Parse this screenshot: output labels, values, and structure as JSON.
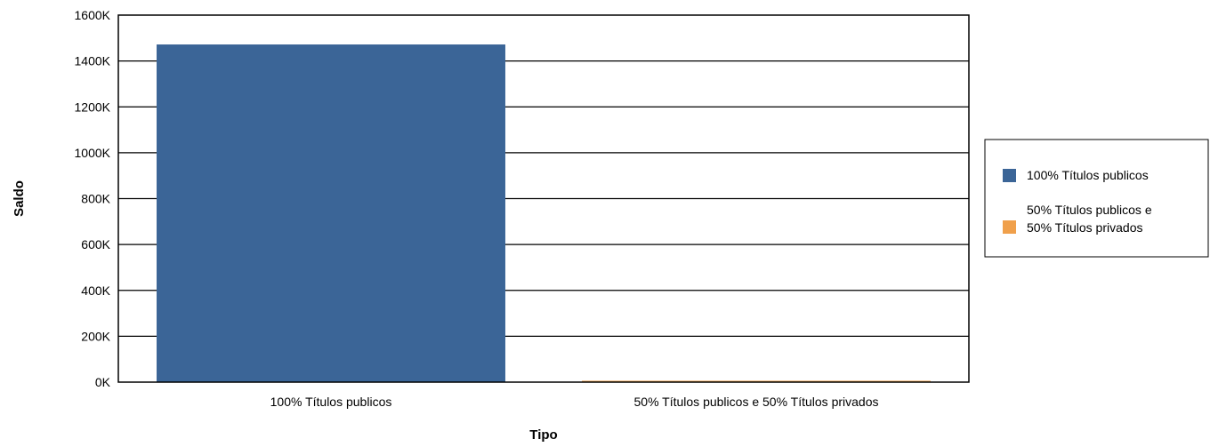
{
  "chart_data": {
    "type": "bar",
    "title": "",
    "xlabel": "Tipo",
    "ylabel": "Saldo",
    "categories": [
      "100% Títulos publicos",
      "50% Títulos publicos e 50% Títulos privados"
    ],
    "values": [
      1472000,
      6000
    ],
    "ylim": [
      0,
      1600000
    ],
    "yticks": [
      0,
      200000,
      400000,
      600000,
      800000,
      1000000,
      1200000,
      1400000,
      1600000
    ],
    "ytick_labels": [
      "0K",
      "200K",
      "400K",
      "600K",
      "800K",
      "1000K",
      "1200K",
      "1400K",
      "1600K"
    ],
    "grid": true,
    "colors": [
      "#3b6597",
      "#f0a04b"
    ],
    "legend": {
      "placement": "right",
      "entries": [
        {
          "line1": "100% Títulos publicos",
          "line2": ""
        },
        {
          "line1": "50% Títulos publicos e",
          "line2": "50% Títulos privados"
        }
      ]
    }
  }
}
